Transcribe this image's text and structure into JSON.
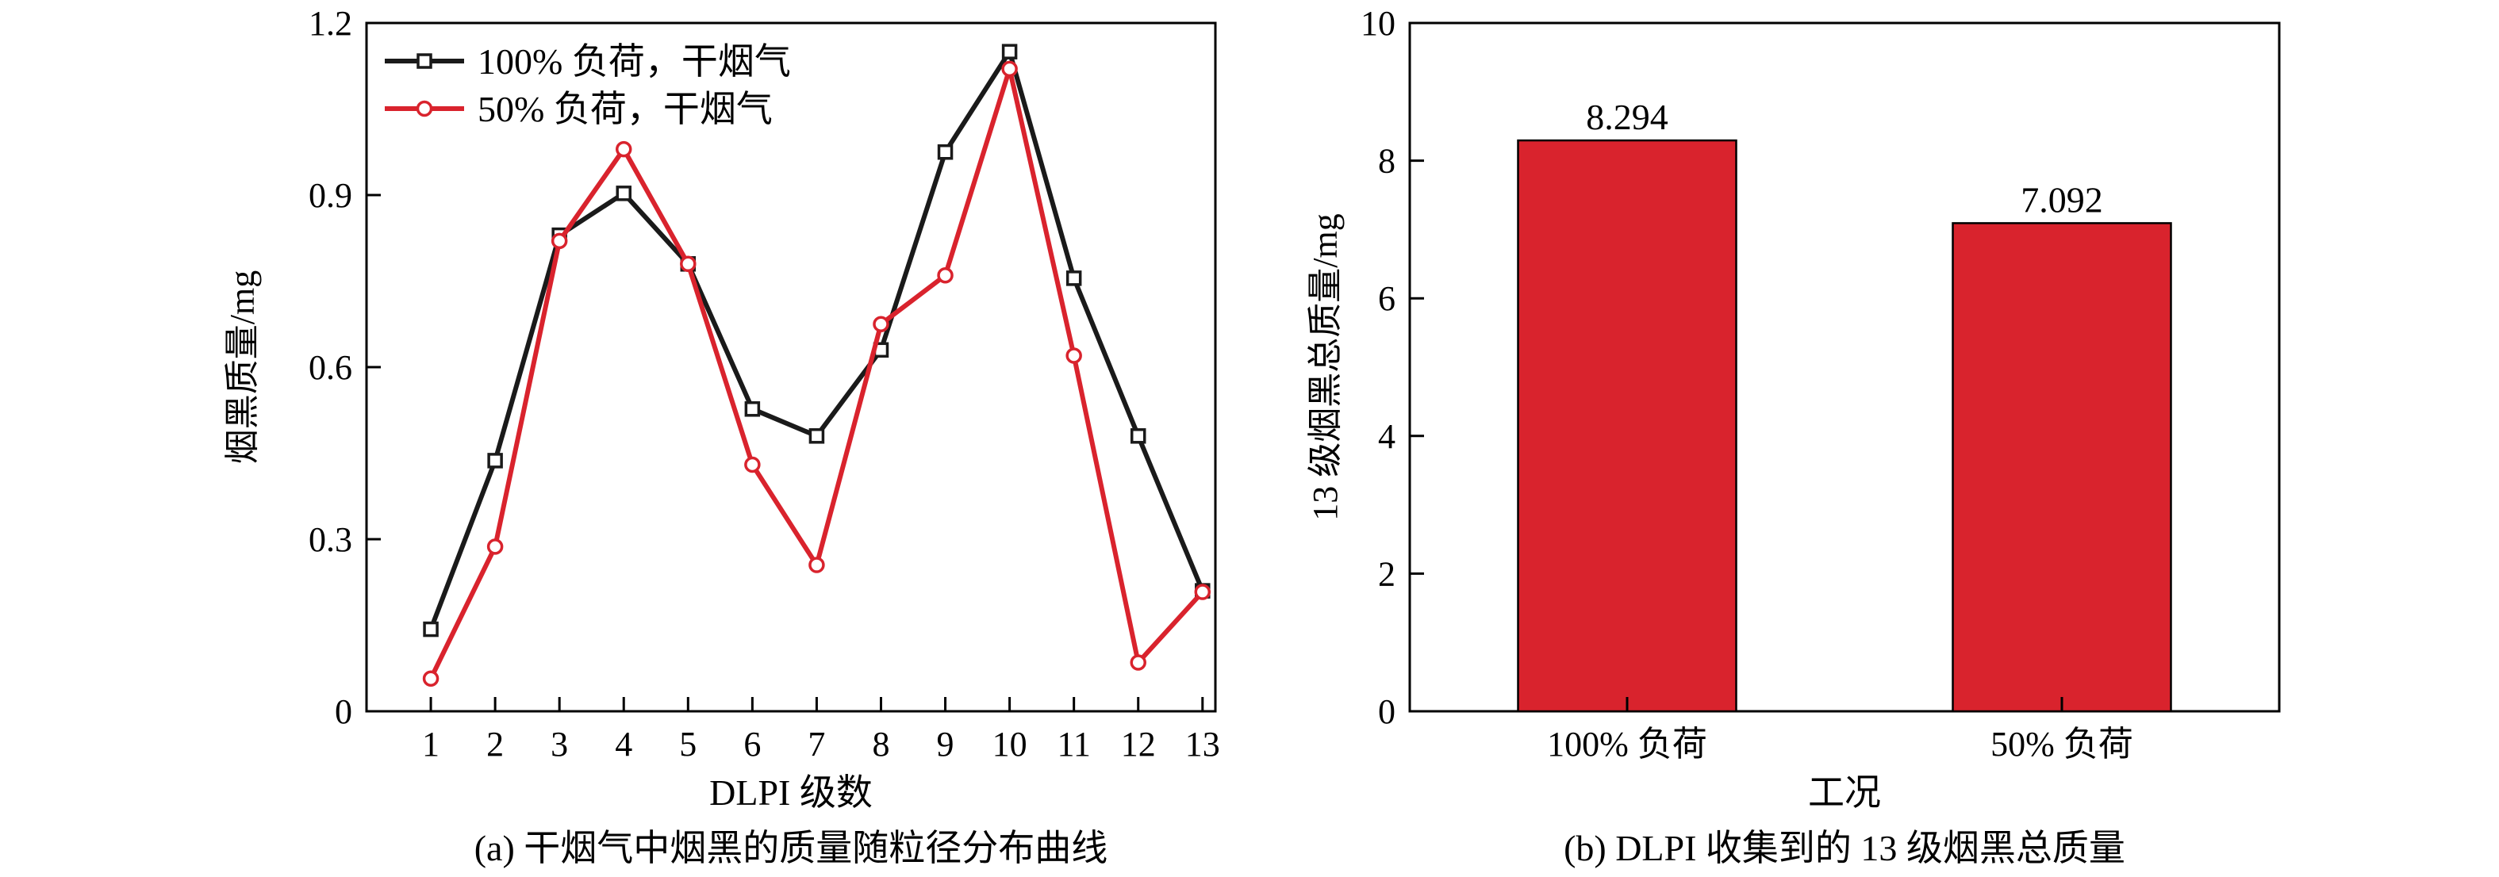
{
  "chart_data": [
    {
      "type": "line",
      "title": "",
      "caption": "(a) 干烟气中烟黑的质量随粒径分布曲线",
      "xlabel": "DLPI 级数",
      "ylabel": "烟黑质量/mg",
      "x": [
        1,
        2,
        3,
        4,
        5,
        6,
        7,
        8,
        9,
        10,
        11,
        12,
        13
      ],
      "x_tick_labels": [
        "1",
        "2",
        "3",
        "4",
        "5",
        "6",
        "7",
        "8",
        "9",
        "10",
        "11",
        "12",
        "13"
      ],
      "xlim": [
        0,
        13.2
      ],
      "ylim": [
        0,
        1.2
      ],
      "y_tick_values": [
        0,
        0.3,
        0.6,
        0.9,
        1.2
      ],
      "y_tick_labels": [
        "0",
        "0.3",
        "0.6",
        "0.9",
        "1.2"
      ],
      "grid": false,
      "legend": "top-left",
      "series": [
        {
          "name": "100% 负荷，干烟气",
          "color": "#1a1a1a",
          "marker": "square",
          "values": [
            0.143,
            0.437,
            0.83,
            0.903,
            0.78,
            0.527,
            0.48,
            0.63,
            0.975,
            1.15,
            0.755,
            0.48,
            0.21
          ]
        },
        {
          "name": "50% 负荷，干烟气",
          "color": "#d9232d",
          "marker": "circle",
          "values": [
            0.057,
            0.287,
            0.82,
            0.98,
            0.78,
            0.43,
            0.255,
            0.675,
            0.76,
            1.12,
            0.62,
            0.085,
            0.208
          ]
        }
      ]
    },
    {
      "type": "bar",
      "title": "",
      "caption": "(b) DLPI 收集到的 13 级烟黑总质量",
      "xlabel": "工况",
      "ylabel": "13 级烟黑总质量/mg",
      "categories": [
        "100% 负荷",
        "50% 负荷"
      ],
      "values": [
        8.294,
        7.092
      ],
      "data_labels": [
        "8.294",
        "7.092"
      ],
      "ylim": [
        0,
        10
      ],
      "y_tick_values": [
        0,
        2,
        4,
        6,
        8,
        10
      ],
      "y_tick_labels": [
        "0",
        "2",
        "4",
        "6",
        "8",
        "10"
      ],
      "grid": false,
      "bar_color": "#d9232d"
    }
  ]
}
